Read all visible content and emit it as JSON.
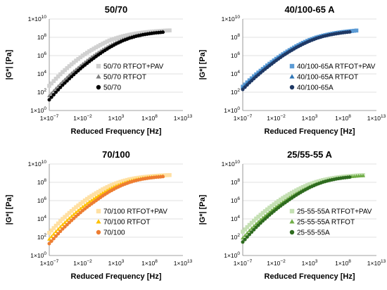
{
  "chart_data": [
    {
      "type": "scatter",
      "title": "50/70",
      "xlabel": "Reduced Frequency [Hz]",
      "ylabel": "|G*| [Pa]",
      "xscale": "log",
      "yscale": "log",
      "xlim": [
        1e-07,
        10000000000000.0
      ],
      "ylim": [
        1,
        10000000000.0
      ],
      "xticks": [
        "1×10",
        "1×10",
        "1×10",
        "1×10",
        "1×10"
      ],
      "xtick_exp": [
        "−7",
        "−2",
        "3",
        "8",
        "13"
      ],
      "yticks": [
        "1×10",
        "10",
        "10",
        "10",
        "10",
        "1×10"
      ],
      "ytick_exp": [
        "0",
        "2",
        "4",
        "6",
        "8",
        "10"
      ],
      "legend_position": "bottom-right",
      "series": [
        {
          "name": "50/70 RTFOT+PAV",
          "marker": "square",
          "color": "#d0d0d0",
          "x": [
            1e-07,
            1e-06,
            1e-05,
            0.0001,
            0.001,
            0.01,
            0.1,
            1,
            10,
            100,
            1000.0,
            10000.0,
            100000.0,
            1000000.0,
            10000000.0,
            100000000.0,
            1000000000.0,
            10000000000.0,
            100000000000.0
          ],
          "y": [
            500.0,
            3000.0,
            16000.0,
            70000.0,
            280000.0,
            1000000.0,
            3000000.0,
            8000000.0,
            20000000.0,
            45000000.0,
            80000000.0,
            130000000.0,
            190000000.0,
            260000000.0,
            330000000.0,
            400000000.0,
            460000000.0,
            520000000.0,
            570000000.0
          ]
        },
        {
          "name": "50/70 RTFOT",
          "marker": "triangle",
          "color": "#808080",
          "x": [
            1e-07,
            1e-06,
            1e-05,
            0.0001,
            0.001,
            0.01,
            0.1,
            1,
            10,
            100,
            1000.0,
            10000.0,
            100000.0,
            1000000.0,
            10000000.0,
            100000000.0,
            1000000000.0,
            10000000000.0
          ],
          "y": [
            40,
            250,
            1400.0,
            7000.0,
            30000.0,
            120000.0,
            450000.0,
            1500000.0,
            4500000.0,
            12000000.0,
            28000000.0,
            58000000.0,
            100000000.0,
            160000000.0,
            220000000.0,
            290000000.0,
            350000000.0,
            410000000.0
          ]
        },
        {
          "name": "50/70",
          "marker": "circle",
          "color": "#000000",
          "x": [
            1e-07,
            1e-06,
            1e-05,
            0.0001,
            0.001,
            0.01,
            0.1,
            1,
            10,
            100,
            1000.0,
            10000.0,
            100000.0,
            1000000.0,
            10000000.0,
            100000000.0,
            1000000000.0,
            10000000000.0
          ],
          "y": [
            15,
            100,
            600,
            3000.0,
            14000.0,
            60000.0,
            230000.0,
            800000.0,
            2600000.0,
            7500000.0,
            19000000.0,
            42000000.0,
            80000000.0,
            130000000.0,
            190000000.0,
            250000000.0,
            310000000.0,
            360000000.0
          ]
        }
      ]
    },
    {
      "type": "scatter",
      "title": "40/100-65 A",
      "xlabel": "Reduced Frequency [Hz]",
      "ylabel": "|G*| [Pa]",
      "xscale": "log",
      "yscale": "log",
      "xlim": [
        1e-07,
        10000000000000.0
      ],
      "ylim": [
        1,
        10000000000.0
      ],
      "xticks": [
        "1×10",
        "1×10",
        "1×10",
        "1×10",
        "1×10"
      ],
      "xtick_exp": [
        "−7",
        "−2",
        "3",
        "8",
        "13"
      ],
      "yticks": [
        "1×10",
        "10",
        "10",
        "10",
        "10",
        "1×10"
      ],
      "ytick_exp": [
        "0",
        "2",
        "4",
        "6",
        "8",
        "10"
      ],
      "legend_position": "bottom-right",
      "series": [
        {
          "name": "40/100-65A RTFOT+PAV",
          "marker": "square",
          "color": "#5b9bd5",
          "x": [
            1e-07,
            1e-06,
            1e-05,
            0.0001,
            0.001,
            0.01,
            0.1,
            1,
            10,
            100,
            1000.0,
            10000.0,
            100000.0,
            1000000.0,
            10000000.0,
            100000000.0,
            1000000000.0,
            10000000000.0
          ],
          "y": [
            400,
            2000.0,
            9000.0,
            35000.0,
            130000.0,
            450000.0,
            1400000.0,
            4000000.0,
            10500000.0,
            25000000.0,
            52000000.0,
            95000000.0,
            150000000.0,
            220000000.0,
            300000000.0,
            380000000.0,
            460000000.0,
            550000000.0
          ]
        },
        {
          "name": "40/100-65A RTFOT",
          "marker": "triangle",
          "color": "#2e75b6",
          "x": [
            1e-07,
            1e-06,
            1e-05,
            0.0001,
            0.001,
            0.01,
            0.1,
            1,
            10,
            100,
            1000.0,
            10000.0,
            100000.0,
            1000000.0,
            10000000.0,
            100000000.0,
            1000000000.0
          ],
          "y": [
            300,
            1500.0,
            7000.0,
            28000.0,
            105000.0,
            370000.0,
            1200000.0,
            3400000.0,
            9000000.0,
            21000000.0,
            45000000.0,
            85000000.0,
            140000000.0,
            200000000.0,
            280000000.0,
            350000000.0,
            420000000.0
          ]
        },
        {
          "name": "40/100-65A",
          "marker": "circle",
          "color": "#1f3864",
          "x": [
            1e-07,
            1e-06,
            1e-05,
            0.0001,
            0.001,
            0.01,
            0.1,
            1,
            10,
            100,
            1000.0,
            10000.0,
            100000.0,
            1000000.0,
            10000000.0,
            100000000.0,
            1000000000.0
          ],
          "y": [
            200,
            1100.0,
            5000.0,
            21000.0,
            80000.0,
            290000.0,
            950000.0,
            2800000.0,
            7500000.0,
            18000000.0,
            39000000.0,
            75000000.0,
            125000000.0,
            185000000.0,
            250000000.0,
            320000000.0,
            390000000.0
          ]
        }
      ]
    },
    {
      "type": "scatter",
      "title": "70/100",
      "xlabel": "Reduced Frequency [Hz]",
      "ylabel": "|G*| [Pa]",
      "xscale": "log",
      "yscale": "log",
      "xlim": [
        1e-07,
        10000000000000.0
      ],
      "ylim": [
        1,
        10000000000.0
      ],
      "xticks": [
        "1×10",
        "1×10",
        "1×10",
        "1×10",
        "1×10"
      ],
      "xtick_exp": [
        "−7",
        "−2",
        "3",
        "8",
        "13"
      ],
      "yticks": [
        "1×10",
        "10",
        "10",
        "10",
        "10",
        "1×10"
      ],
      "ytick_exp": [
        "0",
        "2",
        "4",
        "6",
        "8",
        "10"
      ],
      "legend_position": "bottom-right",
      "series": [
        {
          "name": "70/100 RTFOT+PAV",
          "marker": "square",
          "color": "#ffe0a3",
          "x": [
            1e-07,
            1e-06,
            1e-05,
            0.0001,
            0.001,
            0.01,
            0.1,
            1,
            10,
            100,
            1000.0,
            10000.0,
            100000.0,
            1000000.0,
            10000000.0,
            100000000.0,
            1000000000.0,
            10000000000.0,
            100000000000.0
          ],
          "y": [
            300,
            1800.0,
            10000.0,
            45000.0,
            190000.0,
            700000.0,
            2300000.0,
            6500000.0,
            17000000.0,
            39000000.0,
            78000000.0,
            135000000.0,
            210000000.0,
            290000000.0,
            370000000.0,
            440000000.0,
            510000000.0,
            570000000.0,
            620000000.0
          ]
        },
        {
          "name": "70/100 RTFOT",
          "marker": "triangle",
          "color": "#ffc000",
          "x": [
            1e-07,
            1e-06,
            1e-05,
            0.0001,
            0.001,
            0.01,
            0.1,
            1,
            10,
            100,
            1000.0,
            10000.0,
            100000.0,
            1000000.0,
            10000000.0,
            100000000.0,
            1000000000.0,
            10000000000.0
          ],
          "y": [
            60,
            400,
            2300.0,
            11000.0,
            50000.0,
            200000.0,
            700000.0,
            2200000.0,
            6500000.0,
            17000000.0,
            38000000.0,
            75000000.0,
            130000000.0,
            200000000.0,
            270000000.0,
            340000000.0,
            400000000.0,
            460000000.0
          ]
        },
        {
          "name": "70/100",
          "marker": "circle",
          "color": "#ed7d31",
          "x": [
            1e-07,
            1e-06,
            1e-05,
            0.0001,
            0.001,
            0.01,
            0.1,
            1,
            10,
            100,
            1000.0,
            10000.0,
            100000.0,
            1000000.0,
            10000000.0,
            100000000.0,
            1000000000.0,
            10000000000.0
          ],
          "y": [
            20,
            130,
            800,
            4000.0,
            19000.0,
            80000.0,
            300000.0,
            1000000.0,
            3300000.0,
            9500000.0,
            24000000.0,
            52000000.0,
            98000000.0,
            160000000.0,
            230000000.0,
            300000000.0,
            360000000.0,
            420000000.0
          ]
        }
      ]
    },
    {
      "type": "scatter",
      "title": "25/55-55 A",
      "xlabel": "Reduced Frequency [Hz]",
      "ylabel": "|G*| [Pa]",
      "xscale": "log",
      "yscale": "log",
      "xlim": [
        1e-07,
        10000000000000.0
      ],
      "ylim": [
        1,
        10000000000.0
      ],
      "xticks": [
        "1×10",
        "1×10",
        "1×10",
        "1×10",
        "1×10"
      ],
      "xtick_exp": [
        "−7",
        "−2",
        "3",
        "8",
        "13"
      ],
      "yticks": [
        "1×10",
        "10",
        "10",
        "10",
        "10",
        "1×10"
      ],
      "ytick_exp": [
        "0",
        "2",
        "4",
        "6",
        "8",
        "10"
      ],
      "legend_position": "bottom-right",
      "series": [
        {
          "name": "25-55-55A RTFOT+PAV",
          "marker": "square",
          "color": "#c5e0b4",
          "x": [
            1e-07,
            1e-06,
            1e-05,
            0.0001,
            0.001,
            0.01,
            0.1,
            1,
            10,
            100,
            1000.0,
            10000.0,
            100000.0,
            1000000.0,
            10000000.0,
            100000000.0,
            1000000000.0,
            10000000000.0,
            100000000000.0
          ],
          "y": [
            400,
            2200.0,
            11000.0,
            45000.0,
            170000.0,
            600000.0,
            1900000.0,
            5200000.0,
            13000000.0,
            30000000.0,
            62000000.0,
            110000000.0,
            175000000.0,
            250000000.0,
            330000000.0,
            410000000.0,
            480000000.0,
            550000000.0,
            610000000.0
          ]
        },
        {
          "name": "25-55-55A RTFOT",
          "marker": "triangle",
          "color": "#70ad47",
          "x": [
            1e-07,
            1e-06,
            1e-05,
            0.0001,
            0.001,
            0.01,
            0.1,
            1,
            10,
            100,
            1000.0,
            10000.0,
            100000.0,
            1000000.0,
            10000000.0,
            100000000.0,
            1000000000.0,
            10000000000.0,
            100000000000.0
          ],
          "y": [
            80,
            500,
            2700.0,
            12500.0,
            52000.0,
            200000.0,
            680000.0,
            2100000.0,
            5800000.0,
            14500000.0,
            33000000.0,
            66000000.0,
            115000000.0,
            180000000.0,
            250000000.0,
            320000000.0,
            390000000.0,
            460000000.0,
            520000000.0
          ]
        },
        {
          "name": "25-55-55A",
          "marker": "circle",
          "color": "#2e6b1f",
          "x": [
            1e-07,
            1e-06,
            1e-05,
            0.0001,
            0.001,
            0.01,
            0.1,
            1,
            10,
            100,
            1000.0,
            10000.0,
            100000.0,
            1000000.0,
            10000000.0,
            100000000.0,
            1000000000.0
          ],
          "y": [
            30,
            200,
            1200.0,
            6000.0,
            27000.0,
            110000.0,
            400000.0,
            1300000.0,
            4000000.0,
            11000000.0,
            27000000.0,
            57000000.0,
            105000000.0,
            165000000.0,
            235000000.0,
            305000000.0,
            370000000.0
          ]
        }
      ]
    }
  ]
}
